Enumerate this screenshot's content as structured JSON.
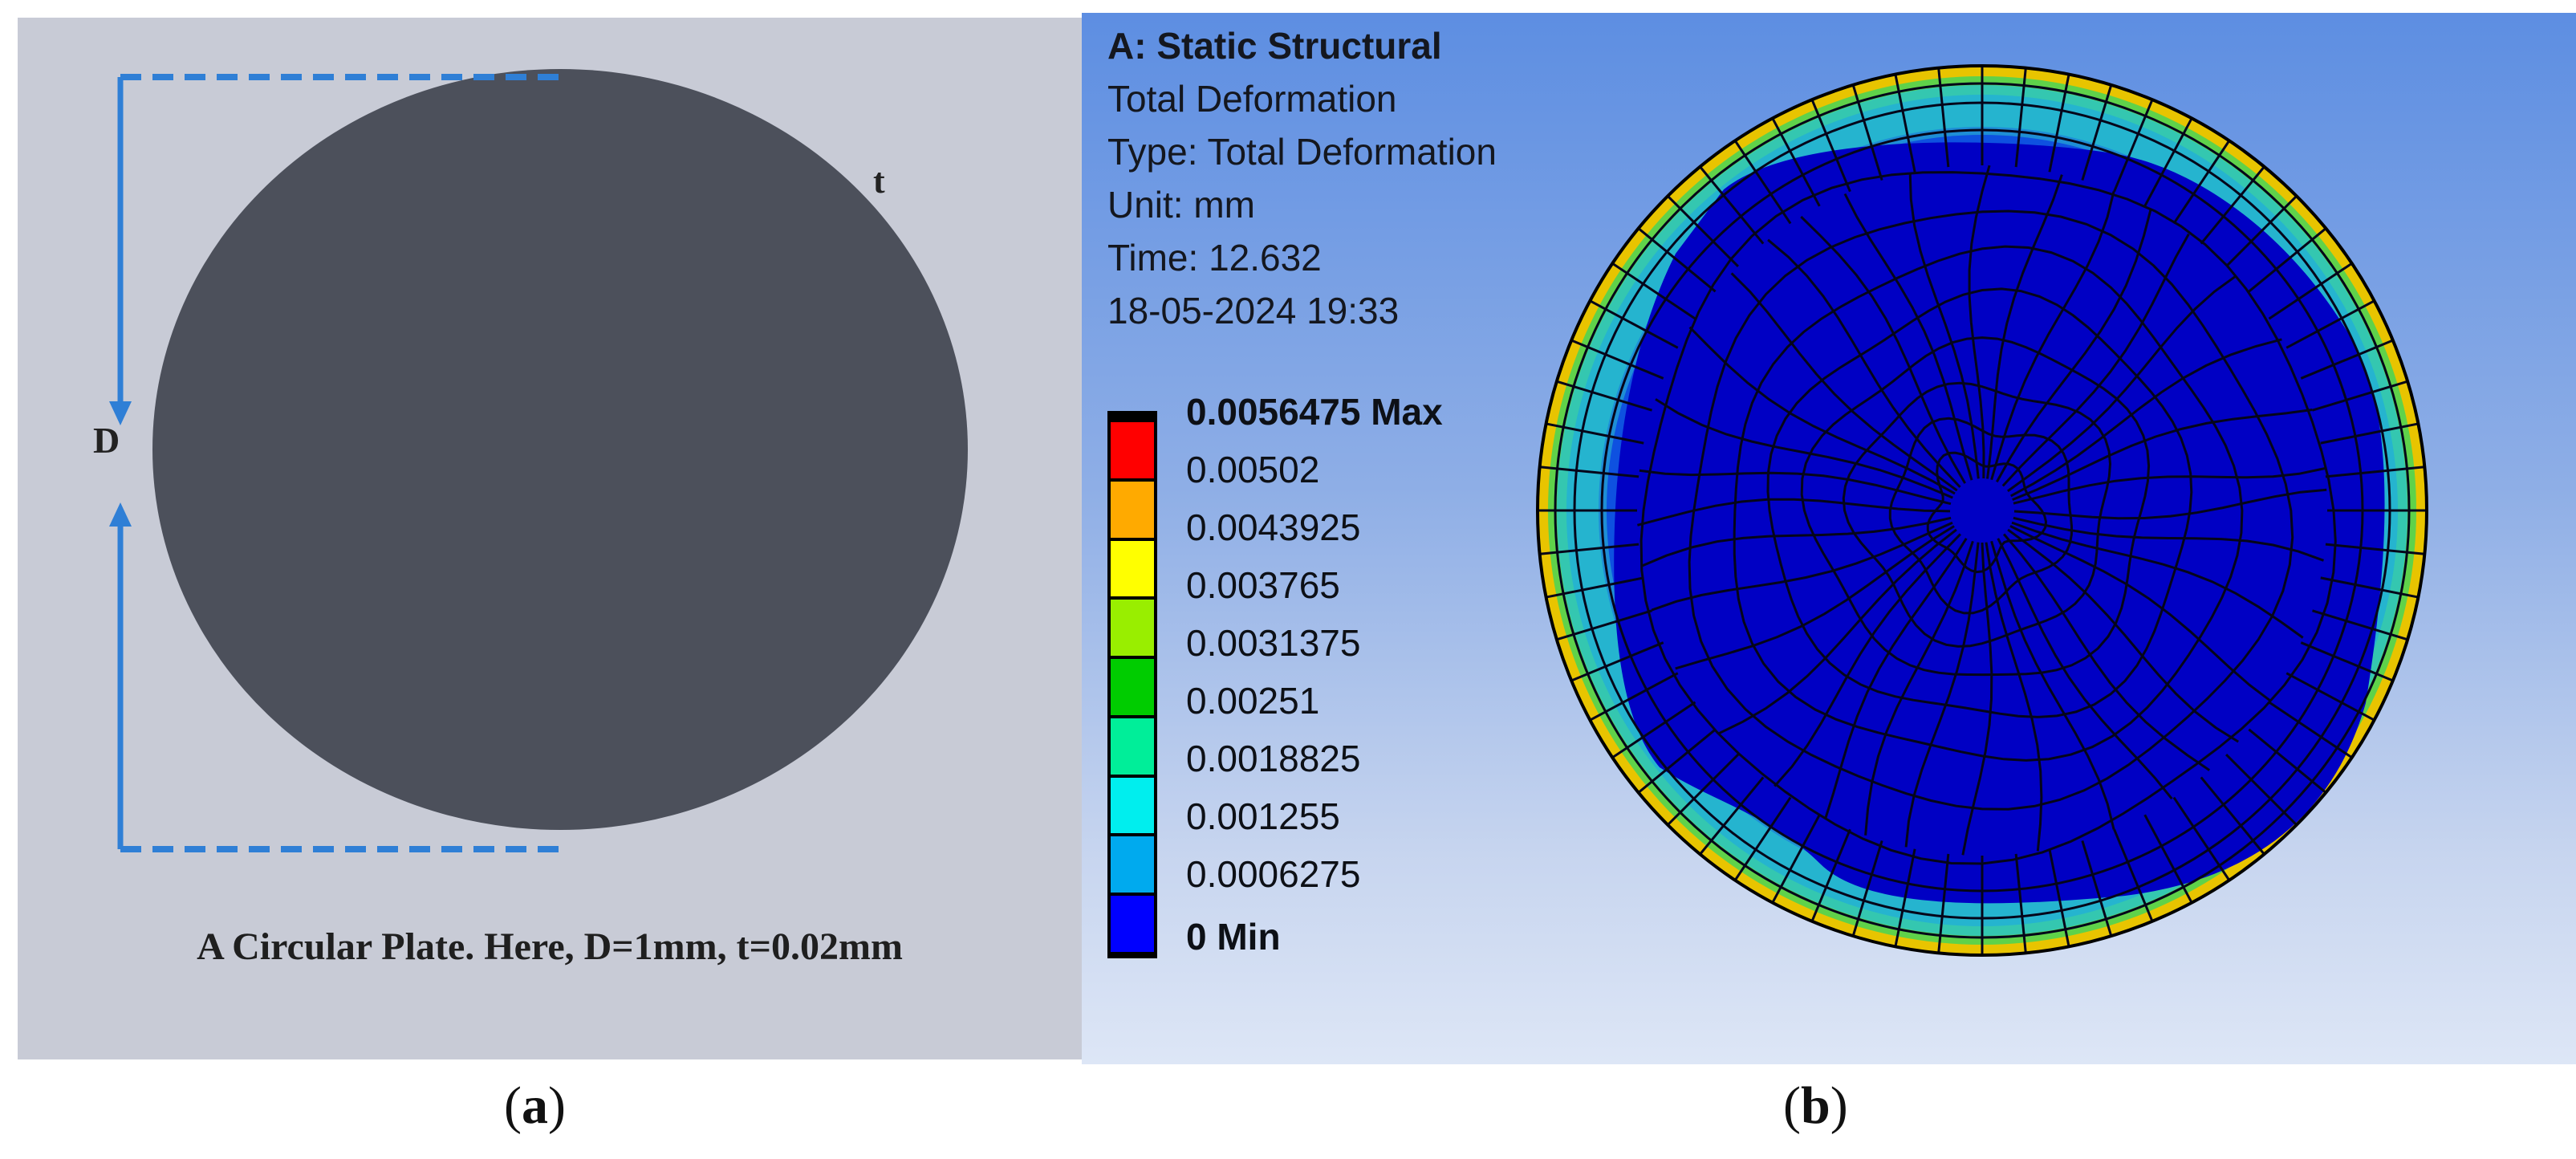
{
  "panel_a": {
    "dimension_label": "D",
    "thickness_label": "t",
    "caption": "A Circular Plate. Here, D=1mm, t=0.02mm",
    "colors": {
      "background": "#c8cbd6",
      "plate": "#4c505b",
      "dimension": "#2f7fd6"
    }
  },
  "panel_b": {
    "header": {
      "analysis": "A: Static Structural",
      "result": "Total Deformation",
      "type": "Type: Total Deformation",
      "unit": "Unit: mm",
      "time": "Time: 12.632",
      "timestamp": "18-05-2024 19:33"
    },
    "legend": {
      "max_label": "0.0056475 Max",
      "min_label": "0 Min",
      "levels": [
        "0.00502",
        "0.0043925",
        "0.003765",
        "0.0031375",
        "0.00251",
        "0.0018825",
        "0.001255",
        "0.0006275"
      ],
      "colors": [
        "#ff0000",
        "#ffaa00",
        "#ffff00",
        "#99ee00",
        "#00cc00",
        "#00ee99",
        "#00eeee",
        "#00aaee",
        "#0000ff"
      ]
    },
    "contour_colors": {
      "outer": "#e8c400",
      "green": "#5fd24a",
      "cyan": "#25b4cf",
      "light_blue": "#1e8ed6",
      "mid_blue": "#0e51e0",
      "core": "#0000c4"
    }
  },
  "captions": {
    "a_letter": "a",
    "b_letter": "b"
  }
}
